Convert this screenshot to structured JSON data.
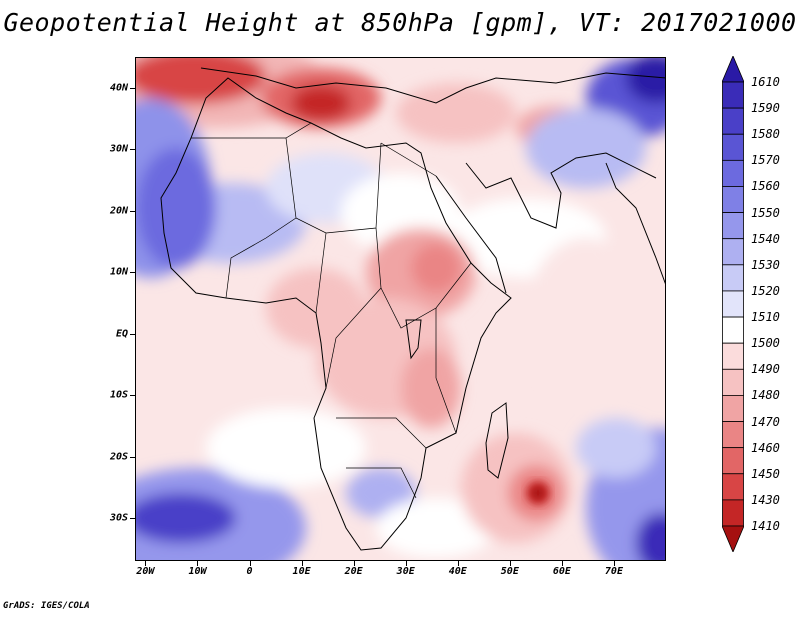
{
  "title": "Geopotential Height at 850hPa [gpm], VT: 2017021000",
  "credit": "GrADS: IGES/COLA",
  "map": {
    "lat_labels": [
      {
        "text": "40N",
        "lat": 40
      },
      {
        "text": "30N",
        "lat": 30
      },
      {
        "text": "20N",
        "lat": 20
      },
      {
        "text": "10N",
        "lat": 10
      },
      {
        "text": "EQ",
        "lat": 0
      },
      {
        "text": "10S",
        "lat": -10
      },
      {
        "text": "20S",
        "lat": -20
      },
      {
        "text": "30S",
        "lat": -30
      }
    ],
    "lon_labels": [
      {
        "text": "20W",
        "lon": -20
      },
      {
        "text": "10W",
        "lon": -10
      },
      {
        "text": "0",
        "lon": 0
      },
      {
        "text": "10E",
        "lon": 10
      },
      {
        "text": "20E",
        "lon": 20
      },
      {
        "text": "30E",
        "lon": 30
      },
      {
        "text": "40E",
        "lon": 40
      },
      {
        "text": "50E",
        "lon": 50
      },
      {
        "text": "60E",
        "lon": 60
      },
      {
        "text": "70E",
        "lon": 70
      }
    ],
    "lon_range": [
      -22,
      80
    ],
    "lat_range": [
      -37,
      45
    ]
  },
  "colorbar": {
    "levels": [
      "1610",
      "1590",
      "1580",
      "1570",
      "1560",
      "1550",
      "1540",
      "1530",
      "1520",
      "1510",
      "1500",
      "1490",
      "1480",
      "1470",
      "1460",
      "1450",
      "1430",
      "1410"
    ],
    "colors": [
      "#2a1aa6",
      "#3a2cb8",
      "#4a40c8",
      "#5a55d4",
      "#6c6adf",
      "#7f80e6",
      "#9597ec",
      "#aeb0f1",
      "#c8cbf6",
      "#e2e4fa",
      "#ffffff",
      "#fbdcdc",
      "#f6c2c2",
      "#f0a4a4",
      "#ea8585",
      "#e26666",
      "#d84545",
      "#c42626",
      "#a51010"
    ]
  }
}
